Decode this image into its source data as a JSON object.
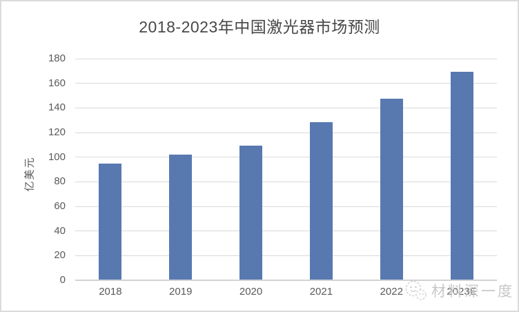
{
  "chart_data": {
    "type": "bar",
    "title": "2018-2023年中国激光器市场预测",
    "categories": [
      "2018",
      "2019",
      "2020",
      "2021",
      "2022",
      "2023E"
    ],
    "values": [
      95,
      102,
      109.5,
      128.5,
      147.5,
      169.5
    ],
    "xlabel": "",
    "ylabel": "亿美元",
    "ylim": [
      0,
      180
    ],
    "ytick_step": 20,
    "grid": true,
    "legend": false,
    "bar_color": "#5878B0"
  },
  "watermark": {
    "text": "材料深一度",
    "icon": "two-bubbles-face-logo-icon",
    "color": "#c2c2c2"
  },
  "colors": {
    "bar": "#5878B0",
    "gridline": "#D9D9D9",
    "axis_line": "#D2D2D2",
    "axis_text": "#595959",
    "title_text": "#474747",
    "frame_border": "#DBDBDB"
  }
}
